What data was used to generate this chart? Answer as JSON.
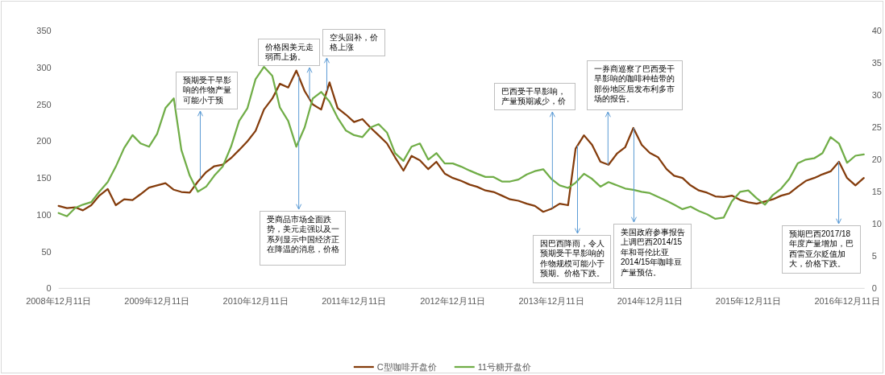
{
  "chart_data": {
    "type": "line",
    "x": [
      "2008-12-11",
      "2009-01-11",
      "2009-02-11",
      "2009-03-11",
      "2009-04-11",
      "2009-05-11",
      "2009-06-11",
      "2009-07-11",
      "2009-08-11",
      "2009-09-11",
      "2009-10-11",
      "2009-11-11",
      "2009-12-11",
      "2010-01-11",
      "2010-02-11",
      "2010-03-11",
      "2010-04-11",
      "2010-05-11",
      "2010-06-11",
      "2010-07-11",
      "2010-08-11",
      "2010-09-11",
      "2010-10-11",
      "2010-11-11",
      "2010-12-11",
      "2011-01-11",
      "2011-02-11",
      "2011-03-11",
      "2011-04-11",
      "2011-05-11",
      "2011-06-11",
      "2011-07-11",
      "2011-08-11",
      "2011-09-11",
      "2011-10-11",
      "2011-11-11",
      "2011-12-11",
      "2012-01-11",
      "2012-02-11",
      "2012-03-11",
      "2012-04-11",
      "2012-05-11",
      "2012-06-11",
      "2012-07-11",
      "2012-08-11",
      "2012-09-11",
      "2012-10-11",
      "2012-11-11",
      "2012-12-11",
      "2013-01-11",
      "2013-02-11",
      "2013-03-11",
      "2013-04-11",
      "2013-05-11",
      "2013-06-11",
      "2013-07-11",
      "2013-08-11",
      "2013-09-11",
      "2013-10-11",
      "2013-11-11",
      "2013-12-11",
      "2014-01-11",
      "2014-02-11",
      "2014-03-11",
      "2014-04-11",
      "2014-05-11",
      "2014-06-11",
      "2014-07-11",
      "2014-08-11",
      "2014-09-11",
      "2014-10-11",
      "2014-11-11",
      "2014-12-11",
      "2015-01-11",
      "2015-02-11",
      "2015-03-11",
      "2015-04-11",
      "2015-05-11",
      "2015-06-11",
      "2015-07-11",
      "2015-08-11",
      "2015-09-11",
      "2015-10-11",
      "2015-11-11",
      "2015-12-11",
      "2016-01-11",
      "2016-02-11",
      "2016-03-11",
      "2016-04-11",
      "2016-05-11",
      "2016-06-11",
      "2016-07-11",
      "2016-08-11",
      "2016-09-11",
      "2016-10-11",
      "2016-11-11",
      "2016-12-11",
      "2017-01-11",
      "2017-02-11"
    ],
    "series": [
      {
        "name": "C型咖啡开盘价",
        "color": "#843c0c",
        "values": [
          112,
          109,
          110,
          106,
          113,
          126,
          135,
          113,
          121,
          120,
          128,
          137,
          140,
          143,
          134,
          131,
          130,
          145,
          158,
          166,
          168,
          177,
          188,
          200,
          214,
          243,
          258,
          278,
          273,
          296,
          268,
          250,
          243,
          280,
          245,
          236,
          226,
          230,
          218,
          208,
          197,
          178,
          160,
          180,
          174,
          162,
          172,
          156,
          150,
          146,
          141,
          138,
          133,
          131,
          126,
          121,
          119,
          115,
          112,
          104,
          108,
          115,
          113,
          190,
          208,
          195,
          172,
          168,
          183,
          192,
          218,
          195,
          184,
          178,
          162,
          153,
          150,
          140,
          133,
          130,
          125,
          124,
          126,
          120,
          117,
          115,
          118,
          121,
          126,
          129,
          138,
          146,
          150,
          155,
          159,
          172,
          150,
          140,
          150
        ]
      },
      {
        "name": "11号糖开盘价",
        "color": "#70ad47",
        "axis": "y2",
        "values": [
          11.7,
          11.2,
          12.5,
          13.0,
          13.4,
          15.0,
          16.5,
          18.9,
          21.8,
          23.8,
          22.5,
          22.0,
          24.0,
          28.0,
          29.5,
          21.5,
          17.5,
          15.0,
          15.8,
          17.5,
          18.9,
          22.0,
          26.0,
          28.0,
          32.5,
          34.4,
          33.0,
          28.1,
          26.0,
          22.0,
          25.0,
          29.5,
          30.5,
          29.0,
          26.5,
          24.5,
          23.8,
          23.5,
          25.0,
          25.5,
          24.2,
          21.0,
          19.8,
          22.0,
          22.5,
          20.0,
          21.0,
          19.4,
          19.4,
          18.9,
          18.3,
          17.8,
          17.3,
          17.3,
          16.6,
          16.6,
          16.9,
          17.7,
          18.2,
          18.5,
          17.0,
          16.0,
          15.6,
          16.4,
          17.8,
          17.0,
          15.8,
          16.5,
          16.0,
          15.5,
          15.3,
          15.0,
          14.8,
          14.2,
          13.6,
          13.0,
          12.3,
          12.7,
          12.0,
          11.5,
          10.8,
          11.0,
          13.5,
          15.0,
          15.2,
          14.0,
          13.0,
          14.5,
          15.5,
          17.0,
          19.4,
          20.0,
          20.2,
          21.0,
          23.5,
          22.5,
          19.5,
          20.6,
          20.8
        ]
      }
    ],
    "xlim": [
      "2008-12-11",
      "2017-02-14"
    ],
    "xticks": [
      {
        "value": "2008-12-11",
        "label": "2008年12月11日"
      },
      {
        "value": "2009-12-11",
        "label": "2009年12月11日"
      },
      {
        "value": "2010-12-11",
        "label": "2010年12月11日"
      },
      {
        "value": "2011-12-11",
        "label": "2011年12月11日"
      },
      {
        "value": "2012-12-11",
        "label": "2012年12月11日"
      },
      {
        "value": "2013-12-11",
        "label": "2013年12月11日"
      },
      {
        "value": "2014-12-11",
        "label": "2014年12月11日"
      },
      {
        "value": "2015-12-11",
        "label": "2015年12月11日"
      },
      {
        "value": "2016-12-11",
        "label": "2016年12月11日"
      }
    ],
    "ylim": [
      0,
      350
    ],
    "yticks": [
      0,
      50,
      100,
      150,
      200,
      250,
      300,
      350
    ],
    "y2lim": [
      0,
      40
    ],
    "y2ticks": [
      0,
      5,
      10,
      15,
      20,
      25,
      30,
      35,
      40
    ],
    "legend": "bottom",
    "line_style": "solid",
    "annotations": [
      {
        "text": "预期受干旱影响的作物产量可能小于预",
        "x": "2010-05-20",
        "y": 149
      },
      {
        "text": "价格因美元走弱而上扬。",
        "x": "2011-06-29",
        "y": 257
      },
      {
        "text": "空头回补，价格上涨",
        "x": "2011-09-01",
        "y": 268
      },
      {
        "text": "受商品市场全面跌势，美元走强以及一系列显示中国经济正在降温的消息，价格",
        "x": "2011-05-20",
        "y": 288
      },
      {
        "text": "巴西受干旱影响，产量预期减少，价",
        "x": "2013-12-15",
        "y": 109
      },
      {
        "text": "因巴西降雨，令人预期受干旱影响的作物规模可能小于预期。价格下跌。",
        "x": "2014-03-18",
        "y": 194
      },
      {
        "text": "一券商巡察了巴西受干旱影响的咖啡种植带的部份地区后发布利多市场的报告。",
        "x": "2014-07-09",
        "y": 168
      },
      {
        "text": "美国政府参事报告上调巴西2014/15年和哥伦比亚2014/15年咖啡豆产量预估。",
        "x": "2014-10-13",
        "y": 218
      },
      {
        "text": "预期巴西2017/18年度产量增加，巴西雷亚尔贬值加大，价格下跌。",
        "x": "2016-11-10",
        "y": 172
      }
    ]
  }
}
